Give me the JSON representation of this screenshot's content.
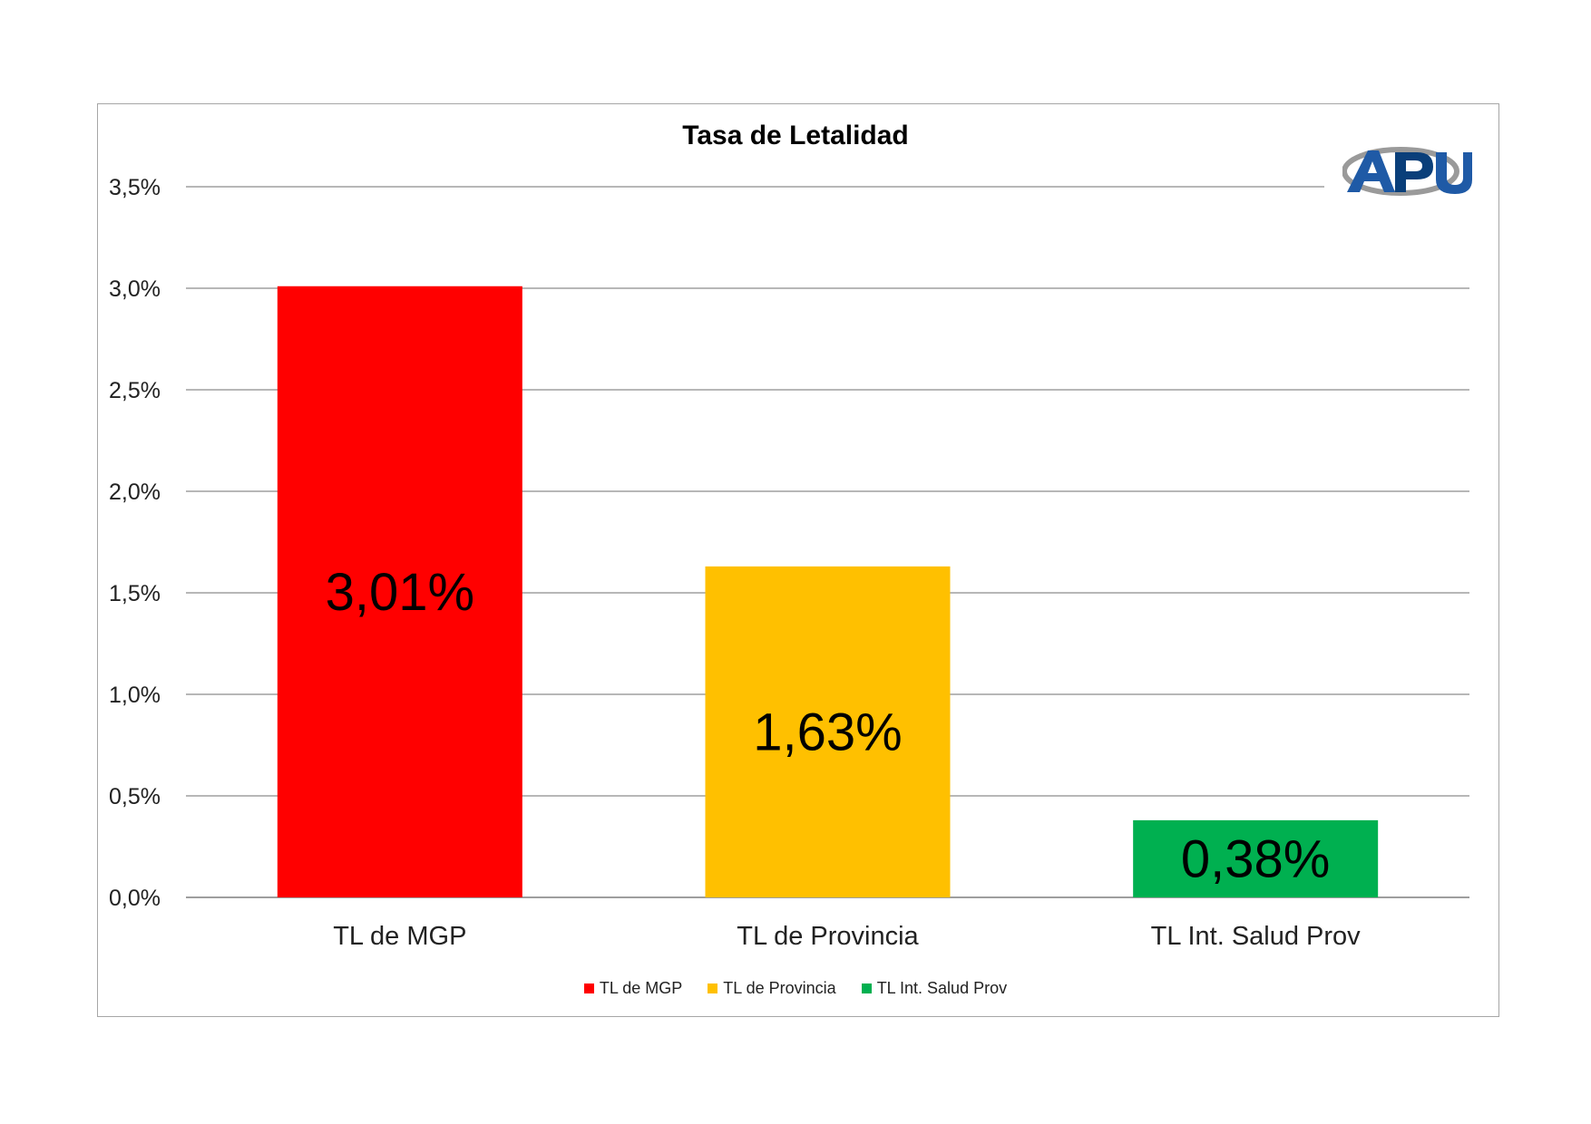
{
  "chart_data": {
    "type": "bar",
    "title": "Tasa de Letalidad",
    "categories": [
      "TL de MGP",
      "TL de Provincia",
      "TL Int. Salud Prov"
    ],
    "values": [
      3.01,
      1.63,
      0.38
    ],
    "value_labels": [
      "3,01%",
      "1,63%",
      "0,38%"
    ],
    "colors": [
      "#ff0000",
      "#ffc000",
      "#00b050"
    ],
    "ylim": [
      0,
      3.5
    ],
    "yticks": [
      0,
      0.5,
      1.0,
      1.5,
      2.0,
      2.5,
      3.0,
      3.5
    ],
    "ytick_labels": [
      "0,0%",
      "0,5%",
      "1,0%",
      "1,5%",
      "2,0%",
      "2,5%",
      "3,0%",
      "3,5%"
    ],
    "grid": true,
    "legend": {
      "position": "bottom",
      "entries": [
        "TL de MGP",
        "TL de Provincia",
        "TL Int. Salud Prov"
      ]
    }
  },
  "logo": {
    "text": "APU",
    "colors": [
      "#1f5aa6",
      "#0a3f7a",
      "#9a9a9a"
    ]
  }
}
